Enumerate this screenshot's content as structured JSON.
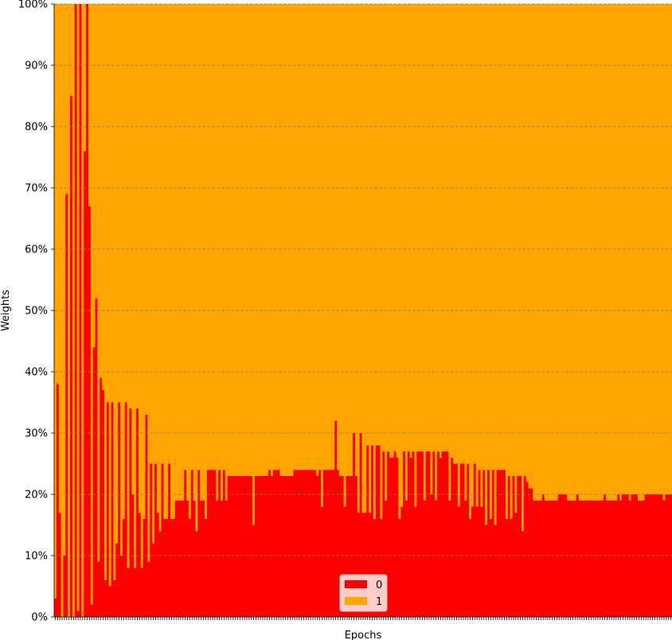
{
  "chart_data": {
    "type": "bar",
    "stacked": true,
    "normalized": true,
    "title": "",
    "xlabel": "Epochs",
    "ylabel": "Weights",
    "ylim": [
      0,
      100
    ],
    "yticks": [
      "0%",
      "10%",
      "20%",
      "30%",
      "40%",
      "50%",
      "60%",
      "70%",
      "80%",
      "90%",
      "100%"
    ],
    "grid": "horizontal-dashed",
    "legend_position": "bottom-center",
    "series_meta": [
      {
        "name": "0",
        "color": "#ff0000"
      },
      {
        "name": "1",
        "color": "#ffa500"
      }
    ],
    "series0_values": [
      3,
      38,
      17,
      0,
      10,
      69,
      0,
      85,
      0,
      100,
      1,
      100,
      0,
      76,
      100,
      67,
      2,
      44,
      52,
      9,
      39,
      37,
      6,
      35,
      5,
      35,
      6,
      12,
      35,
      10,
      16,
      35,
      8,
      34,
      20,
      8,
      34,
      17,
      8,
      16,
      33,
      9,
      25,
      12,
      25,
      17,
      14,
      25,
      16,
      16,
      25,
      16,
      16,
      19,
      19,
      19,
      19,
      24,
      19,
      16,
      24,
      19,
      14,
      24,
      19,
      19,
      16,
      24,
      24,
      24,
      24,
      19,
      24,
      19,
      24,
      19,
      23,
      23,
      23,
      23,
      23,
      23,
      23,
      23,
      23,
      23,
      23,
      15,
      23,
      23,
      23,
      23,
      23,
      23,
      24,
      23,
      24,
      24,
      24,
      23,
      23,
      23,
      23,
      23,
      23,
      24,
      24,
      24,
      24,
      24,
      24,
      24,
      24,
      24,
      24,
      23,
      24,
      18,
      24,
      24,
      24,
      24,
      24,
      32,
      24,
      23,
      23,
      18,
      23,
      23,
      23,
      30,
      23,
      17,
      30,
      17,
      17,
      28,
      17,
      28,
      16,
      28,
      28,
      16,
      27,
      19,
      27,
      26,
      26,
      27,
      26,
      16,
      18,
      27,
      19,
      27,
      26,
      27,
      18,
      27,
      27,
      27,
      19,
      27,
      27,
      20,
      27,
      19,
      27,
      26,
      27,
      27,
      27,
      19,
      26,
      25,
      25,
      18,
      25,
      25,
      19,
      25,
      16,
      18,
      25,
      18,
      24,
      18,
      24,
      15,
      24,
      16,
      24,
      15,
      24,
      24,
      24,
      24,
      16,
      23,
      16,
      23,
      17,
      23,
      23,
      14,
      23,
      22,
      21,
      21,
      19,
      19,
      19,
      19,
      20,
      19,
      19,
      19,
      19,
      19,
      19,
      20,
      20,
      20,
      20,
      19,
      19,
      19,
      19,
      20,
      19,
      19,
      19,
      19,
      19,
      19,
      19,
      19,
      19,
      19,
      19,
      20,
      19,
      19,
      19,
      19,
      19,
      20,
      19,
      20,
      20,
      20,
      19,
      20,
      20,
      20,
      19,
      19,
      19,
      20,
      20,
      20,
      20,
      20,
      20,
      20,
      20,
      19,
      20,
      20,
      20
    ]
  }
}
